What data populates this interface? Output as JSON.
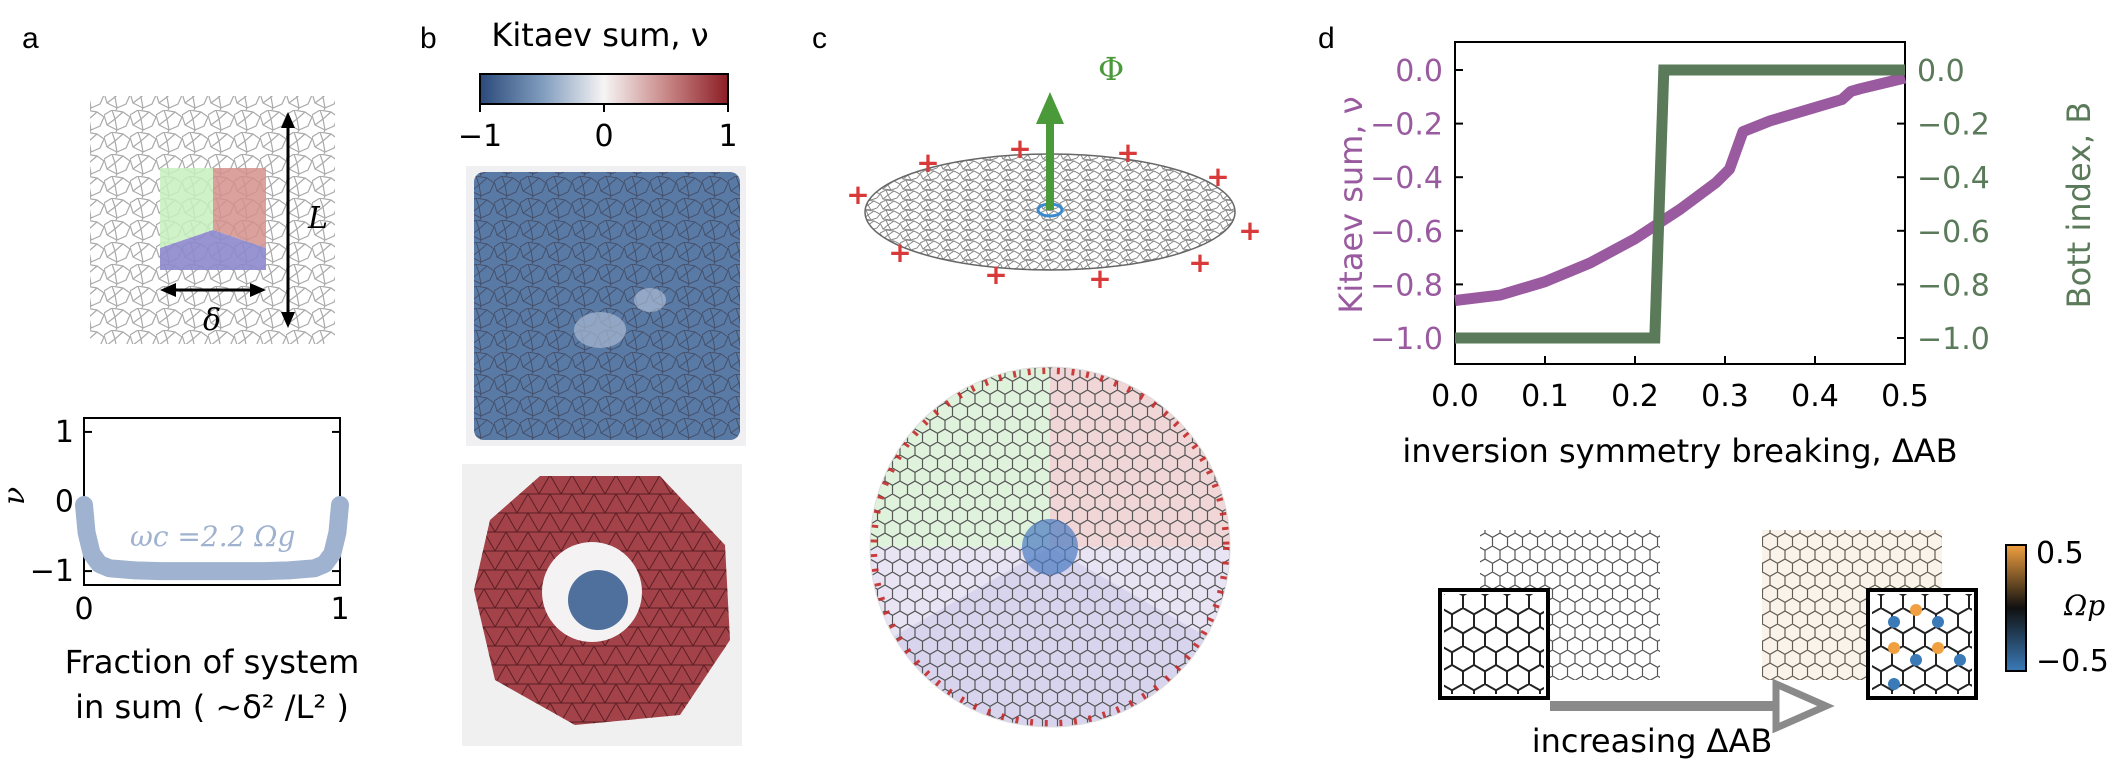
{
  "panels": {
    "a": {
      "label": "a",
      "schematic": {
        "L_label": "L",
        "delta_label": "δ"
      },
      "plot": {
        "ylabel": "ν",
        "xlabel_line1": "Fraction of system",
        "xlabel_line2": "in sum ( ∼δ² /L² )",
        "annotation": "ωc =2.2 Ωg",
        "xticks": [
          "0",
          "1"
        ],
        "yticks": [
          "1",
          "0",
          "−1"
        ]
      }
    },
    "b": {
      "label": "b",
      "colorbar_title": "Kitaev sum, ν",
      "colorbar_ticks": [
        "−1",
        "0",
        "1"
      ]
    },
    "c": {
      "label": "c",
      "flux_label": "Φ"
    },
    "d": {
      "label": "d",
      "xlabel": "inversion symmetry breaking, ΔAB",
      "ylabel_left": "Kitaev sum, ν",
      "ylabel_right": "Bott index, B",
      "xticks": [
        "0.0",
        "0.1",
        "0.2",
        "0.3",
        "0.4",
        "0.5"
      ],
      "yticks_left": [
        "0.0",
        "−0.2",
        "−0.4",
        "−0.6",
        "−0.8",
        "−1.0"
      ],
      "yticks_right": [
        "0.0",
        "−0.2",
        "−0.4",
        "−0.6",
        "−0.8",
        "−1.0"
      ],
      "colorbar_label": "Ωp",
      "colorbar_ticks": [
        "0.5",
        "−0.5"
      ],
      "arrow_label": "increasing ΔAB",
      "colors": {
        "kitaev": "#9a5aa0",
        "bott": "#5a7a5a"
      }
    }
  },
  "chart_data": [
    {
      "type": "line",
      "panel": "a",
      "xlabel": "Fraction of system in sum ( ∼δ² /L² )",
      "ylabel": "ν",
      "xlim": [
        0,
        1
      ],
      "ylim": [
        -1.2,
        1.2
      ],
      "series": [
        {
          "name": "ωc =2.2 Ωg",
          "x": [
            0.0,
            0.01,
            0.03,
            0.06,
            0.1,
            0.2,
            0.3,
            0.4,
            0.5,
            0.6,
            0.7,
            0.8,
            0.9,
            0.94,
            0.97,
            0.99,
            1.0
          ],
          "y": [
            -0.05,
            -0.45,
            -0.75,
            -0.9,
            -0.96,
            -0.99,
            -1.0,
            -1.0,
            -1.0,
            -1.0,
            -1.0,
            -0.99,
            -0.96,
            -0.9,
            -0.75,
            -0.45,
            -0.05
          ]
        }
      ]
    },
    {
      "type": "line",
      "panel": "d",
      "xlabel": "inversion symmetry breaking, ΔAB",
      "ylabel": "Kitaev sum, ν",
      "y2label": "Bott index, B",
      "xlim": [
        0,
        0.5
      ],
      "ylim": [
        -1.1,
        0.05
      ],
      "series": [
        {
          "name": "Kitaev sum, ν",
          "x": [
            0.0,
            0.05,
            0.1,
            0.15,
            0.2,
            0.25,
            0.29,
            0.305,
            0.32,
            0.35,
            0.4,
            0.43,
            0.44,
            0.45,
            0.475,
            0.5
          ],
          "y": [
            -0.86,
            -0.84,
            -0.79,
            -0.72,
            -0.63,
            -0.52,
            -0.42,
            -0.37,
            -0.23,
            -0.19,
            -0.14,
            -0.11,
            -0.08,
            -0.07,
            -0.05,
            -0.03
          ]
        },
        {
          "name": "Bott index, B",
          "x": [
            0.0,
            0.1,
            0.2,
            0.222,
            0.232,
            0.3,
            0.4,
            0.5
          ],
          "y": [
            -1.0,
            -1.0,
            -1.0,
            -1.0,
            0.0,
            0.0,
            0.0,
            0.0
          ]
        }
      ]
    }
  ]
}
